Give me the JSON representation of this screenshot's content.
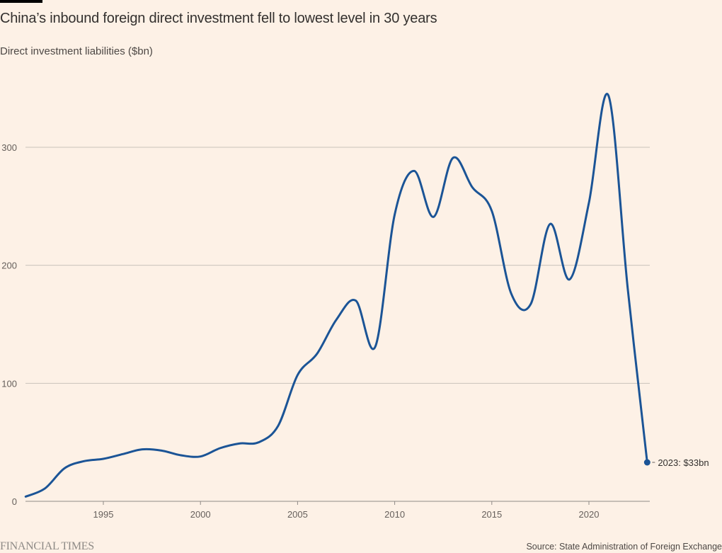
{
  "header": {
    "title": "China’s inbound foreign direct investment fell to lowest level in 30 years",
    "subtitle": "Direct investment liabilities ($bn)"
  },
  "footer": {
    "logo": "FINANCIAL TIMES",
    "source": "Source: State Administration of Foreign Exchange"
  },
  "colors": {
    "background": "#fdf1e6",
    "line": "#1b5496",
    "grid": "#c9c2ba",
    "text": "#33302e"
  },
  "chart_data": {
    "type": "line",
    "title": "China’s inbound foreign direct investment fell to lowest level in 30 years",
    "ylabel": "Direct investment liabilities ($bn)",
    "xlabel": "",
    "xlim": [
      1991,
      2023
    ],
    "ylim": [
      0,
      350
    ],
    "yticks": [
      0,
      100,
      200,
      300
    ],
    "xticks": [
      1995,
      2000,
      2005,
      2010,
      2015,
      2020
    ],
    "grid": true,
    "series": [
      {
        "name": "Direct investment liabilities",
        "x": [
          1991,
          1992,
          1993,
          1994,
          1995,
          1996,
          1997,
          1998,
          1999,
          2000,
          2001,
          2002,
          2003,
          2004,
          2005,
          2006,
          2007,
          2008,
          2009,
          2010,
          2011,
          2012,
          2013,
          2014,
          2015,
          2016,
          2017,
          2018,
          2019,
          2020,
          2021,
          2022,
          2023
        ],
        "values": [
          4,
          11,
          28,
          34,
          36,
          40,
          44,
          43,
          39,
          38,
          45,
          49,
          50,
          64,
          107,
          125,
          154,
          170,
          131,
          243,
          280,
          241,
          291,
          266,
          246,
          176,
          167,
          235,
          188,
          253,
          344,
          180,
          33
        ]
      }
    ],
    "annotation": {
      "label": "2023: $33bn",
      "x": 2023,
      "y": 33
    }
  }
}
